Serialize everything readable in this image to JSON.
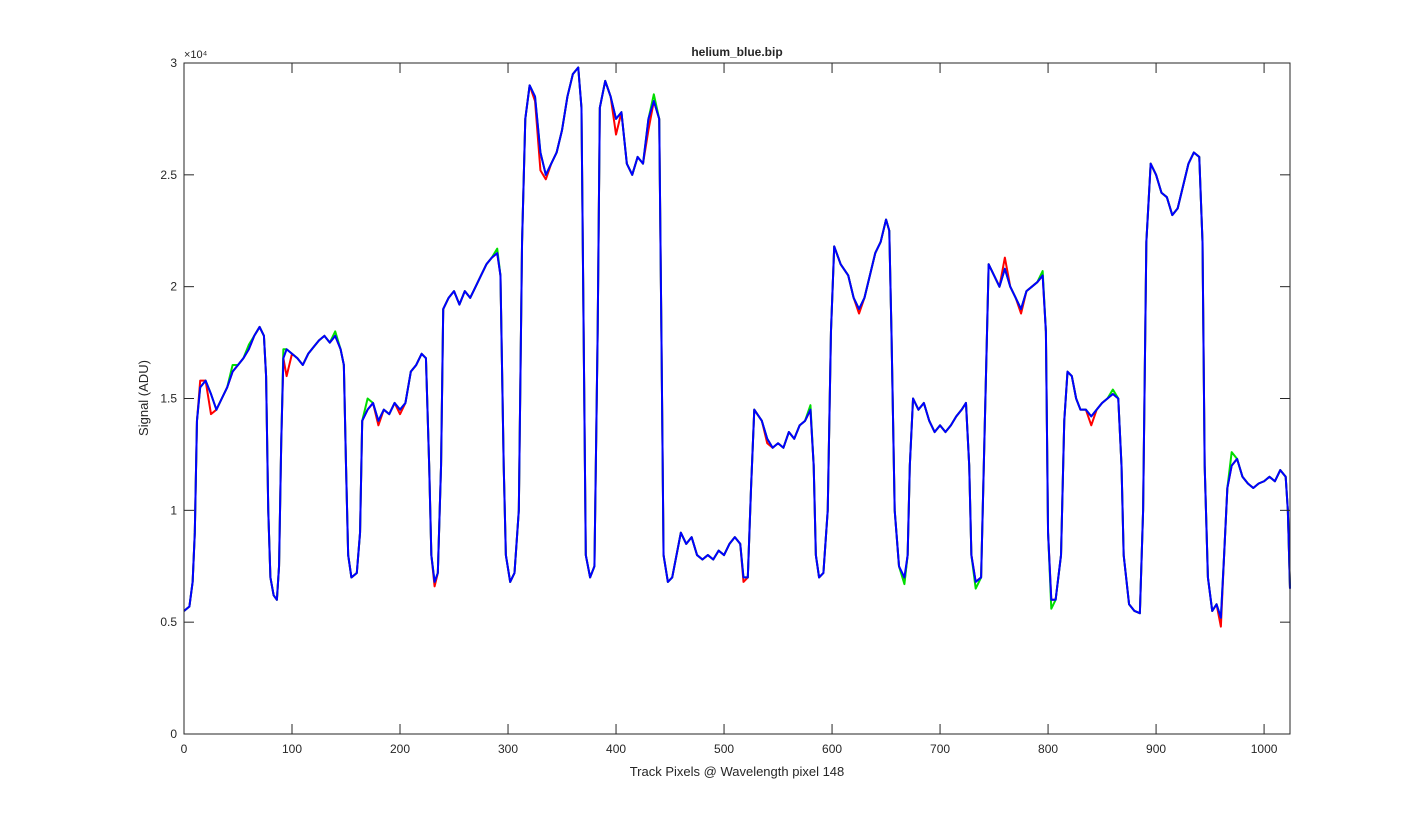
{
  "chart_data": {
    "type": "line",
    "title": "helium_blue.bip",
    "x_label": "Track Pixels @ Wavelength pixel 148",
    "y_label": "Signal (ADU)",
    "y_exponent": "×10⁴",
    "xlim": [
      0,
      1024
    ],
    "xticks": [
      0,
      100,
      200,
      300,
      400,
      500,
      600,
      700,
      800,
      900,
      1000
    ],
    "ylim": [
      0,
      30000
    ],
    "yticks": [
      0,
      {
        "value": 5000,
        "label": "0.5"
      },
      {
        "value": 10000,
        "label": "1"
      },
      {
        "value": 15000,
        "label": "1.5"
      },
      {
        "value": 20000,
        "label": "2"
      },
      {
        "value": 25000,
        "label": "2.5"
      },
      {
        "value": 30000,
        "label": "3"
      }
    ],
    "grid": false,
    "x": [
      0,
      5,
      8,
      10,
      12,
      15,
      20,
      25,
      30,
      35,
      40,
      45,
      50,
      55,
      60,
      65,
      70,
      74,
      76,
      78,
      80,
      83,
      86,
      88,
      90,
      92,
      95,
      100,
      105,
      110,
      115,
      120,
      125,
      130,
      135,
      140,
      145,
      148,
      150,
      152,
      155,
      160,
      163,
      165,
      170,
      175,
      180,
      185,
      190,
      195,
      200,
      205,
      210,
      215,
      220,
      224,
      227,
      229,
      232,
      235,
      238,
      240,
      245,
      250,
      255,
      260,
      265,
      270,
      275,
      280,
      285,
      290,
      293,
      296,
      298,
      302,
      306,
      310,
      313,
      316,
      320,
      325,
      330,
      335,
      340,
      345,
      350,
      355,
      360,
      365,
      368,
      370,
      372,
      376,
      380,
      383,
      385,
      390,
      395,
      400,
      405,
      410,
      415,
      420,
      425,
      430,
      435,
      440,
      442,
      444,
      448,
      452,
      456,
      460,
      465,
      470,
      475,
      480,
      485,
      490,
      495,
      500,
      505,
      510,
      515,
      518,
      522,
      525,
      528,
      535,
      540,
      545,
      550,
      555,
      560,
      565,
      570,
      575,
      580,
      583,
      585,
      588,
      592,
      596,
      599,
      602,
      608,
      615,
      620,
      625,
      630,
      635,
      640,
      645,
      650,
      653,
      655,
      658,
      662,
      667,
      670,
      672,
      675,
      680,
      685,
      690,
      695,
      700,
      705,
      710,
      715,
      720,
      724,
      727,
      729,
      733,
      738,
      741,
      745,
      750,
      755,
      760,
      765,
      770,
      775,
      780,
      785,
      790,
      795,
      798,
      800,
      803,
      807,
      812,
      815,
      818,
      822,
      826,
      830,
      835,
      840,
      845,
      850,
      855,
      860,
      865,
      868,
      870,
      875,
      880,
      885,
      888,
      891,
      895,
      900,
      905,
      910,
      915,
      920,
      925,
      930,
      935,
      940,
      943,
      945,
      948,
      952,
      956,
      960,
      963,
      966,
      970,
      975,
      980,
      985,
      990,
      995,
      1000,
      1005,
      1010,
      1015,
      1020,
      1022,
      1024
    ],
    "series": [
      {
        "color": "#ff0000",
        "values": [
          5500,
          5700,
          6800,
          9000,
          14000,
          15800,
          15800,
          14300,
          14500,
          15000,
          15500,
          16200,
          16500,
          16800,
          17200,
          17800,
          18200,
          17800,
          16000,
          10000,
          7000,
          6200,
          6000,
          7500,
          13000,
          16800,
          16000,
          17000,
          16800,
          16500,
          17000,
          17300,
          17600,
          17800,
          17500,
          17800,
          17200,
          16500,
          12000,
          8000,
          7000,
          7200,
          9000,
          14000,
          14500,
          14800,
          13800,
          14500,
          14300,
          14800,
          14300,
          14800,
          16200,
          16500,
          17000,
          16800,
          12000,
          8000,
          6600,
          7200,
          12000,
          19000,
          19500,
          19800,
          19200,
          19800,
          19500,
          20000,
          20500,
          21000,
          21300,
          21500,
          20500,
          12000,
          8000,
          6800,
          7200,
          10000,
          22000,
          27500,
          29000,
          28300,
          25200,
          24800,
          25500,
          26000,
          27000,
          28500,
          29500,
          29800,
          28000,
          18000,
          8000,
          7000,
          7500,
          18000,
          28000,
          29200,
          28500,
          26800,
          27800,
          25500,
          25000,
          25800,
          25500,
          27000,
          28300,
          27500,
          18000,
          8000,
          6800,
          7000,
          8000,
          9000,
          8500,
          8800,
          8000,
          7800,
          8000,
          7800,
          8200,
          8000,
          8500,
          8800,
          8500,
          6800,
          7000,
          11000,
          14500,
          14000,
          13000,
          12800,
          13000,
          12800,
          13500,
          13200,
          13800,
          14000,
          14500,
          12000,
          8000,
          7000,
          7200,
          10000,
          18000,
          21800,
          21000,
          20500,
          19500,
          18800,
          19500,
          20500,
          21500,
          22000,
          23000,
          22500,
          18000,
          10000,
          7500,
          6800,
          8000,
          12000,
          15000,
          14500,
          14800,
          14000,
          13500,
          13800,
          13500,
          13800,
          14200,
          14500,
          14800,
          12000,
          8000,
          6800,
          7000,
          13000,
          21000,
          20500,
          20000,
          21300,
          20000,
          19500,
          18800,
          19800,
          20000,
          20200,
          20500,
          18000,
          9000,
          6000,
          6000,
          8000,
          14000,
          16200,
          16000,
          15000,
          14500,
          14500,
          13800,
          14500,
          14800,
          15000,
          15200,
          15000,
          12000,
          8000,
          5800,
          5500,
          5400,
          10000,
          22000,
          25500,
          25000,
          24200,
          24000,
          23200,
          23500,
          24500,
          25500,
          26000,
          25800,
          22000,
          12000,
          7000,
          5500,
          5800,
          4800,
          8000,
          11000,
          12000,
          12300,
          11500,
          11200,
          11000,
          11200,
          11300,
          11500,
          11300,
          11800,
          11500,
          10000,
          6500
        ]
      },
      {
        "color": "#00dd00",
        "values": [
          5500,
          5700,
          6800,
          9000,
          14000,
          15500,
          15800,
          15200,
          14500,
          15000,
          15500,
          16500,
          16500,
          16800,
          17400,
          17800,
          18200,
          17800,
          16000,
          10000,
          7000,
          6200,
          6000,
          7500,
          13000,
          17200,
          17200,
          17000,
          16800,
          16500,
          17000,
          17300,
          17600,
          17800,
          17500,
          18000,
          17200,
          16500,
          12000,
          8000,
          7000,
          7200,
          9000,
          14000,
          15000,
          14800,
          14000,
          14500,
          14300,
          14800,
          14500,
          14800,
          16200,
          16500,
          17000,
          16800,
          12000,
          8000,
          6800,
          7200,
          12000,
          19000,
          19500,
          19800,
          19200,
          19800,
          19500,
          20000,
          20500,
          21000,
          21300,
          21700,
          20500,
          12000,
          8000,
          6800,
          7200,
          10000,
          22000,
          27500,
          29000,
          28500,
          26000,
          25000,
          25500,
          26000,
          27000,
          28500,
          29500,
          29800,
          28000,
          18000,
          8000,
          7000,
          7500,
          18000,
          28000,
          29200,
          28500,
          27500,
          27800,
          25500,
          25000,
          25800,
          25500,
          27500,
          28600,
          27500,
          18000,
          8000,
          6800,
          7000,
          8000,
          9000,
          8500,
          8800,
          8000,
          7800,
          8000,
          7800,
          8200,
          8000,
          8500,
          8800,
          8500,
          7000,
          7000,
          11000,
          14500,
          14000,
          13200,
          12800,
          13000,
          12800,
          13500,
          13200,
          13800,
          14000,
          14700,
          12000,
          8000,
          7000,
          7200,
          10000,
          18000,
          21800,
          21000,
          20500,
          19500,
          19000,
          19500,
          20500,
          21500,
          22000,
          23000,
          22500,
          18000,
          10000,
          7500,
          6700,
          8000,
          12000,
          15000,
          14500,
          14800,
          14000,
          13500,
          13800,
          13500,
          13800,
          14200,
          14500,
          14800,
          12000,
          8000,
          6500,
          7000,
          13000,
          21000,
          20500,
          20000,
          20800,
          20000,
          19500,
          19000,
          19800,
          20000,
          20200,
          20700,
          18000,
          9000,
          5600,
          6000,
          8000,
          14000,
          16200,
          16000,
          15000,
          14500,
          14500,
          14200,
          14500,
          14800,
          15000,
          15400,
          15000,
          12000,
          8000,
          5800,
          5500,
          5400,
          10000,
          22000,
          25500,
          25000,
          24200,
          24000,
          23200,
          23500,
          24500,
          25500,
          26000,
          25800,
          22000,
          12000,
          7000,
          5500,
          5800,
          5200,
          8000,
          11000,
          12600,
          12300,
          11500,
          11200,
          11000,
          11200,
          11300,
          11500,
          11300,
          11800,
          11500,
          10000,
          6500
        ]
      },
      {
        "color": "#0000ff",
        "values": [
          5500,
          5700,
          6800,
          9000,
          14000,
          15500,
          15800,
          15200,
          14500,
          15000,
          15500,
          16200,
          16500,
          16800,
          17200,
          17800,
          18200,
          17800,
          16000,
          10000,
          7000,
          6200,
          6000,
          7500,
          13000,
          16800,
          17200,
          17000,
          16800,
          16500,
          17000,
          17300,
          17600,
          17800,
          17500,
          17800,
          17200,
          16500,
          12000,
          8000,
          7000,
          7200,
          9000,
          14000,
          14500,
          14800,
          14000,
          14500,
          14300,
          14800,
          14500,
          14800,
          16200,
          16500,
          17000,
          16800,
          12000,
          8000,
          6800,
          7200,
          12000,
          19000,
          19500,
          19800,
          19200,
          19800,
          19500,
          20000,
          20500,
          21000,
          21300,
          21500,
          20500,
          12000,
          8000,
          6800,
          7200,
          10000,
          22000,
          27500,
          29000,
          28500,
          26000,
          25000,
          25500,
          26000,
          27000,
          28500,
          29500,
          29800,
          28000,
          18000,
          8000,
          7000,
          7500,
          18000,
          28000,
          29200,
          28500,
          27500,
          27800,
          25500,
          25000,
          25800,
          25500,
          27500,
          28300,
          27500,
          18000,
          8000,
          6800,
          7000,
          8000,
          9000,
          8500,
          8800,
          8000,
          7800,
          8000,
          7800,
          8200,
          8000,
          8500,
          8800,
          8500,
          7000,
          7000,
          11000,
          14500,
          14000,
          13200,
          12800,
          13000,
          12800,
          13500,
          13200,
          13800,
          14000,
          14500,
          12000,
          8000,
          7000,
          7200,
          10000,
          18000,
          21800,
          21000,
          20500,
          19500,
          19000,
          19500,
          20500,
          21500,
          22000,
          23000,
          22500,
          18000,
          10000,
          7500,
          7000,
          8000,
          12000,
          15000,
          14500,
          14800,
          14000,
          13500,
          13800,
          13500,
          13800,
          14200,
          14500,
          14800,
          12000,
          8000,
          6800,
          7000,
          13000,
          21000,
          20500,
          20000,
          20800,
          20000,
          19500,
          19000,
          19800,
          20000,
          20200,
          20500,
          18000,
          9000,
          6000,
          6000,
          8000,
          14000,
          16200,
          16000,
          15000,
          14500,
          14500,
          14200,
          14500,
          14800,
          15000,
          15200,
          15000,
          12000,
          8000,
          5800,
          5500,
          5400,
          10000,
          22000,
          25500,
          25000,
          24200,
          24000,
          23200,
          23500,
          24500,
          25500,
          26000,
          25800,
          22000,
          12000,
          7000,
          5500,
          5800,
          5200,
          8000,
          11000,
          12000,
          12300,
          11500,
          11200,
          11000,
          11200,
          11300,
          11500,
          11300,
          11800,
          11500,
          10000,
          6500
        ]
      }
    ]
  }
}
